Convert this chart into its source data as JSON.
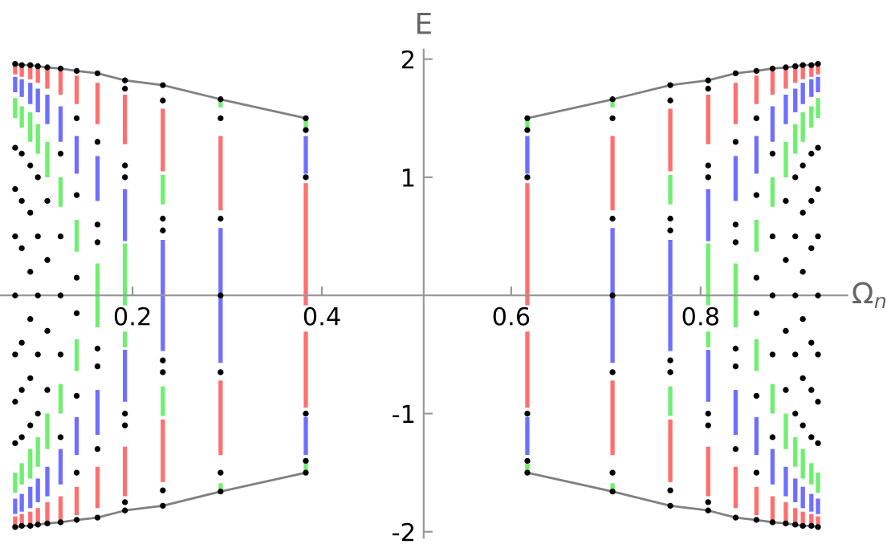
{
  "chart_data": {
    "type": "scatter",
    "xlabel": "Ω$_{n}$",
    "ylabel": "E",
    "xlim": [
      0.06,
      0.955
    ],
    "ylim": [
      -2.05,
      2.08
    ],
    "xticks": [
      0.2,
      0.4,
      0.6,
      0.8
    ],
    "yticks": [
      -2,
      -1,
      1,
      2
    ],
    "grid": false,
    "legend": false,
    "series": [
      {
        "type": "bar",
        "color": "#ff6f6f",
        "x": [
          0.076,
          0.083,
          0.092,
          0.1,
          0.11,
          0.124,
          0.141,
          0.163,
          0.192,
          0.232,
          0.293,
          0.383,
          0.617,
          0.707,
          0.768,
          0.808,
          0.837,
          0.859,
          0.876,
          0.89,
          0.9,
          0.908,
          0.917,
          0.924
        ],
        "base": [
          1.87,
          1.85,
          1.83,
          1.8,
          1.75,
          1.7,
          1.62,
          1.45,
          1.28,
          1.05,
          0.72,
          -0.95,
          -0.95,
          0.72,
          1.05,
          1.28,
          1.45,
          1.62,
          1.7,
          1.75,
          1.8,
          1.83,
          1.85,
          1.87
        ],
        "values": [
          0.09,
          0.1,
          0.11,
          0.13,
          0.17,
          0.2,
          0.24,
          0.35,
          0.42,
          0.53,
          0.63,
          1.9,
          1.9,
          0.63,
          0.53,
          0.42,
          0.35,
          0.24,
          0.2,
          0.17,
          0.13,
          0.11,
          0.1,
          0.09
        ]
      },
      {
        "type": "bar",
        "color": "#ff6f6f",
        "x": [
          0.076,
          0.083,
          0.092,
          0.1,
          0.11,
          0.124,
          0.141,
          0.163,
          0.192,
          0.232,
          0.293,
          0.707,
          0.768,
          0.808,
          0.837,
          0.859,
          0.876,
          0.89,
          0.9,
          0.908,
          0.917,
          0.924
        ],
        "base": [
          -1.96,
          -1.95,
          -1.94,
          -1.93,
          -1.92,
          -1.9,
          -1.86,
          -1.8,
          -1.7,
          -1.58,
          -1.35,
          -1.35,
          -1.58,
          -1.7,
          -1.8,
          -1.86,
          -1.9,
          -1.92,
          -1.93,
          -1.94,
          -1.95,
          -1.96
        ],
        "values": [
          0.09,
          0.1,
          0.11,
          0.13,
          0.17,
          0.2,
          0.24,
          0.35,
          0.42,
          0.53,
          0.63,
          0.63,
          0.53,
          0.42,
          0.35,
          0.24,
          0.2,
          0.17,
          0.13,
          0.11,
          0.1,
          0.09
        ]
      },
      {
        "type": "bar",
        "color": "#6f6fff",
        "x": [
          0.076,
          0.083,
          0.092,
          0.1,
          0.11,
          0.124,
          0.141,
          0.163,
          0.192,
          0.232,
          0.293,
          0.383,
          0.617,
          0.707,
          0.768,
          0.808,
          0.837,
          0.859,
          0.876,
          0.89,
          0.9,
          0.908,
          0.917,
          0.924
        ],
        "base": [
          1.72,
          1.68,
          1.62,
          1.55,
          1.45,
          1.3,
          1.03,
          0.8,
          0.46,
          -0.47,
          -0.57,
          1.03,
          1.03,
          -0.57,
          -0.47,
          0.46,
          0.8,
          1.03,
          1.3,
          1.45,
          1.55,
          1.62,
          1.68,
          1.72
        ],
        "values": [
          0.13,
          0.15,
          0.18,
          0.2,
          0.25,
          0.3,
          0.32,
          0.38,
          0.44,
          0.94,
          1.14,
          0.32,
          0.32,
          1.14,
          0.94,
          0.44,
          0.38,
          0.32,
          0.3,
          0.25,
          0.2,
          0.18,
          0.15,
          0.13
        ]
      },
      {
        "type": "bar",
        "color": "#6f6fff",
        "x": [
          0.076,
          0.083,
          0.092,
          0.1,
          0.11,
          0.124,
          0.141,
          0.163,
          0.192,
          0.383,
          0.617,
          0.808,
          0.837,
          0.859,
          0.876,
          0.89,
          0.9,
          0.908,
          0.917,
          0.924
        ],
        "base": [
          -1.85,
          -1.83,
          -1.8,
          -1.75,
          -1.7,
          -1.6,
          -1.35,
          -1.18,
          -0.9,
          -1.35,
          -1.35,
          -0.9,
          -1.18,
          -1.35,
          -1.6,
          -1.7,
          -1.75,
          -1.8,
          -1.83,
          -1.85
        ],
        "values": [
          0.13,
          0.15,
          0.18,
          0.2,
          0.25,
          0.3,
          0.32,
          0.38,
          0.44,
          0.32,
          0.32,
          0.44,
          0.38,
          0.32,
          0.3,
          0.25,
          0.2,
          0.18,
          0.15,
          0.13
        ]
      },
      {
        "type": "bar",
        "color": "#6fef6f",
        "x": [
          0.076,
          0.083,
          0.092,
          0.1,
          0.11,
          0.124,
          0.141,
          0.163,
          0.192,
          0.232,
          0.293,
          0.383,
          0.617,
          0.707,
          0.768,
          0.808,
          0.837,
          0.859,
          0.876,
          0.89,
          0.9,
          0.908,
          0.917,
          0.924
        ],
        "base": [
          1.5,
          1.42,
          1.3,
          1.2,
          1.0,
          0.75,
          0.37,
          -0.27,
          -0.44,
          0.77,
          1.59,
          1.42,
          1.42,
          1.59,
          0.77,
          -0.44,
          -0.27,
          0.37,
          0.75,
          1.0,
          1.2,
          1.3,
          1.42,
          1.5
        ],
        "values": [
          0.17,
          0.18,
          0.25,
          0.25,
          0.3,
          0.25,
          0.27,
          0.54,
          0.88,
          0.25,
          0.07,
          0.08,
          0.08,
          0.07,
          0.25,
          0.88,
          0.54,
          0.27,
          0.25,
          0.3,
          0.25,
          0.25,
          0.18,
          0.17
        ]
      },
      {
        "type": "bar",
        "color": "#6fef6f",
        "x": [
          0.076,
          0.083,
          0.092,
          0.1,
          0.11,
          0.124,
          0.141,
          0.232,
          0.293,
          0.383,
          0.617,
          0.707,
          0.768,
          0.859,
          0.876,
          0.89,
          0.9,
          0.908,
          0.917,
          0.924
        ],
        "base": [
          -1.67,
          -1.6,
          -1.55,
          -1.45,
          -1.3,
          -1.0,
          -0.64,
          -1.02,
          -1.66,
          -1.5,
          -1.5,
          -1.66,
          -1.02,
          -0.64,
          -1.0,
          -1.3,
          -1.45,
          -1.55,
          -1.6,
          -1.67
        ],
        "values": [
          0.17,
          0.18,
          0.25,
          0.25,
          0.3,
          0.25,
          0.27,
          0.25,
          0.07,
          0.08,
          0.08,
          0.07,
          0.25,
          0.27,
          0.25,
          0.3,
          0.25,
          0.25,
          0.18,
          0.17
        ]
      },
      {
        "type": "line",
        "color": "#808080",
        "x": [
          0.076,
          0.083,
          0.092,
          0.1,
          0.11,
          0.124,
          0.141,
          0.163,
          0.192,
          0.232,
          0.293,
          0.383
        ],
        "values": [
          1.96,
          1.95,
          1.95,
          1.94,
          1.93,
          1.92,
          1.9,
          1.88,
          1.82,
          1.78,
          1.66,
          1.5
        ]
      },
      {
        "type": "line",
        "color": "#808080",
        "x": [
          0.076,
          0.083,
          0.092,
          0.1,
          0.11,
          0.124,
          0.141,
          0.163,
          0.192,
          0.232,
          0.293,
          0.383
        ],
        "values": [
          -1.96,
          -1.95,
          -1.95,
          -1.94,
          -1.93,
          -1.92,
          -1.9,
          -1.88,
          -1.82,
          -1.78,
          -1.66,
          -1.5
        ]
      },
      {
        "type": "line",
        "color": "#808080",
        "x": [
          0.617,
          0.707,
          0.768,
          0.808,
          0.837,
          0.859,
          0.876,
          0.89,
          0.9,
          0.908,
          0.917,
          0.924
        ],
        "values": [
          1.5,
          1.66,
          1.78,
          1.82,
          1.88,
          1.9,
          1.92,
          1.93,
          1.94,
          1.95,
          1.95,
          1.96
        ]
      },
      {
        "type": "line",
        "color": "#808080",
        "x": [
          0.617,
          0.707,
          0.768,
          0.808,
          0.837,
          0.859,
          0.876,
          0.89,
          0.9,
          0.908,
          0.917,
          0.924
        ],
        "values": [
          -1.5,
          -1.66,
          -1.78,
          -1.82,
          -1.88,
          -1.9,
          -1.92,
          -1.93,
          -1.94,
          -1.95,
          -1.95,
          -1.96
        ]
      },
      {
        "type": "scatter",
        "color": "#000000",
        "x": [
          0.383,
          0.383,
          0.383,
          0.383,
          0.383,
          0.383,
          0.293,
          0.293,
          0.293,
          0.293,
          0.293,
          0.293,
          0.293,
          0.232,
          0.232,
          0.232,
          0.232,
          0.232,
          0.232,
          0.232,
          0.232,
          0.192,
          0.192,
          0.192,
          0.192,
          0.192,
          0.192,
          0.192,
          0.192,
          0.163,
          0.163,
          0.163,
          0.163,
          0.163,
          0.163,
          0.163,
          0.163,
          0.141,
          0.141,
          0.141,
          0.141,
          0.141,
          0.141,
          0.141,
          0.141,
          0.124,
          0.124,
          0.124,
          0.124,
          0.124,
          0.124,
          0.124,
          0.11,
          0.11,
          0.11,
          0.11,
          0.11,
          0.11,
          0.1,
          0.1,
          0.1,
          0.1,
          0.1,
          0.1,
          0.1,
          0.092,
          0.092,
          0.092,
          0.092,
          0.092,
          0.092,
          0.092,
          0.092,
          0.083,
          0.083,
          0.083,
          0.083,
          0.083,
          0.083,
          0.083,
          0.083,
          0.076,
          0.076,
          0.076,
          0.076,
          0.076,
          0.076,
          0.076,
          0.076,
          0.076,
          0.617,
          0.617,
          0.617,
          0.617,
          0.617,
          0.617,
          0.707,
          0.707,
          0.707,
          0.707,
          0.707,
          0.707,
          0.707,
          0.768,
          0.768,
          0.768,
          0.768,
          0.768,
          0.768,
          0.768,
          0.768,
          0.808,
          0.808,
          0.808,
          0.808,
          0.808,
          0.808,
          0.808,
          0.808,
          0.837,
          0.837,
          0.837,
          0.837,
          0.837,
          0.837,
          0.837,
          0.837,
          0.859,
          0.859,
          0.859,
          0.859,
          0.859,
          0.859,
          0.859,
          0.859,
          0.876,
          0.876,
          0.876,
          0.876,
          0.876,
          0.876,
          0.876,
          0.89,
          0.89,
          0.89,
          0.89,
          0.89,
          0.89,
          0.9,
          0.9,
          0.9,
          0.9,
          0.9,
          0.9,
          0.9,
          0.908,
          0.908,
          0.908,
          0.908,
          0.908,
          0.908,
          0.908,
          0.908,
          0.917,
          0.917,
          0.917,
          0.917,
          0.917,
          0.917,
          0.917,
          0.917,
          0.924,
          0.924,
          0.924,
          0.924,
          0.924,
          0.924,
          0.924,
          0.924,
          0.924
        ],
        "values": [
          1.5,
          1.4,
          1.0,
          -1.0,
          -1.4,
          -1.5,
          1.66,
          1.5,
          0.65,
          0,
          -0.65,
          -1.5,
          -1.66,
          1.78,
          1.65,
          0.65,
          0.55,
          -0.55,
          -0.65,
          -1.65,
          -1.78,
          1.82,
          1.75,
          1.1,
          1.0,
          -1.0,
          -1.1,
          -1.75,
          -1.82,
          1.88,
          1.3,
          0.6,
          0.45,
          -0.45,
          -0.6,
          -1.3,
          -1.88,
          1.9,
          1.5,
          0.85,
          0.15,
          -0.15,
          -0.85,
          -1.5,
          -1.9,
          1.92,
          1.2,
          0.5,
          0,
          -0.5,
          -1.2,
          -1.92,
          1.93,
          0.8,
          0.3,
          -0.3,
          -0.8,
          -1.93,
          1.94,
          1.0,
          0.5,
          0,
          -0.5,
          -1.0,
          -1.94,
          1.95,
          1.1,
          0.7,
          0.2,
          -0.2,
          -0.7,
          -1.1,
          -1.95,
          1.95,
          1.2,
          0.8,
          0.4,
          -0.4,
          -0.8,
          -1.2,
          -1.95,
          1.96,
          1.25,
          0.9,
          0.5,
          0,
          -0.5,
          -0.9,
          -1.25,
          -1.96,
          1.5,
          1.4,
          1.0,
          -1.0,
          -1.4,
          -1.5,
          1.66,
          1.5,
          0.65,
          0,
          -0.65,
          -1.5,
          -1.66,
          1.78,
          1.65,
          0.65,
          0.55,
          -0.55,
          -0.65,
          -1.65,
          -1.78,
          1.82,
          1.75,
          1.1,
          1.0,
          -1.0,
          -1.1,
          -1.75,
          -1.82,
          1.88,
          1.3,
          0.6,
          0.45,
          -0.45,
          -0.6,
          -1.3,
          -1.88,
          1.9,
          1.5,
          0.85,
          0.15,
          -0.15,
          -0.85,
          -1.5,
          -1.9,
          1.92,
          1.2,
          0.5,
          0,
          -0.5,
          -1.2,
          -1.92,
          1.93,
          0.8,
          0.3,
          -0.3,
          -0.8,
          -1.93,
          1.94,
          1.0,
          0.5,
          0,
          -0.5,
          -1.0,
          -1.94,
          1.95,
          1.1,
          0.7,
          0.2,
          -0.2,
          -0.7,
          -1.1,
          -1.95,
          1.95,
          1.2,
          0.8,
          0.4,
          -0.4,
          -0.8,
          -1.2,
          -1.95,
          1.96,
          1.25,
          0.9,
          0.5,
          0,
          -0.5,
          -0.9,
          -1.25,
          -1.96
        ]
      }
    ]
  }
}
